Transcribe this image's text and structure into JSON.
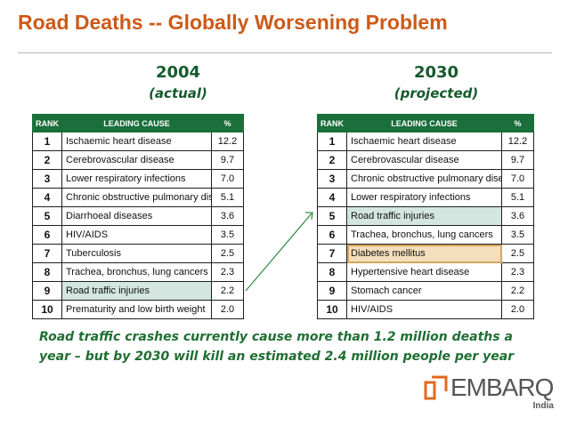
{
  "title": "Road Deaths -- Globally Worsening Problem",
  "left": {
    "year": "2004",
    "subtitle": "(actual)",
    "headers": [
      "RANK",
      "LEADING CAUSE",
      "%"
    ],
    "rows": [
      {
        "rank": "1",
        "cause": "Ischaemic heart disease",
        "pct": "12.2"
      },
      {
        "rank": "2",
        "cause": "Cerebrovascular disease",
        "pct": "9.7"
      },
      {
        "rank": "3",
        "cause": "Lower respiratory infections",
        "pct": "7.0"
      },
      {
        "rank": "4",
        "cause": "Chronic obstructive pulmonary disease",
        "pct": "5.1"
      },
      {
        "rank": "5",
        "cause": "Diarrhoeal diseases",
        "pct": "3.6"
      },
      {
        "rank": "6",
        "cause": "HIV/AIDS",
        "pct": "3.5"
      },
      {
        "rank": "7",
        "cause": "Tuberculosis",
        "pct": "2.5"
      },
      {
        "rank": "8",
        "cause": "Trachea, bronchus, lung cancers",
        "pct": "2.3"
      },
      {
        "rank": "9",
        "cause": "Road traffic injuries",
        "pct": "2.2"
      },
      {
        "rank": "10",
        "cause": "Prematurity and low birth weight",
        "pct": "2.0"
      }
    ]
  },
  "right": {
    "year": "2030",
    "subtitle": "(projected)",
    "headers": [
      "RANK",
      "LEADING CAUSE",
      "%"
    ],
    "rows": [
      {
        "rank": "1",
        "cause": "Ischaemic heart disease",
        "pct": "12.2"
      },
      {
        "rank": "2",
        "cause": "Cerebrovascular disease",
        "pct": "9.7"
      },
      {
        "rank": "3",
        "cause": "Chronic obstructive pulmonary disease",
        "pct": "7.0"
      },
      {
        "rank": "4",
        "cause": "Lower respiratory infections",
        "pct": "5.1"
      },
      {
        "rank": "5",
        "cause": "Road traffic injuries",
        "pct": "3.6"
      },
      {
        "rank": "6",
        "cause": "Trachea, bronchus, lung cancers",
        "pct": "3.5"
      },
      {
        "rank": "7",
        "cause": "Diabetes mellitus",
        "pct": "2.5"
      },
      {
        "rank": "8",
        "cause": "Hypertensive heart disease",
        "pct": "2.3"
      },
      {
        "rank": "9",
        "cause": "Stomach cancer",
        "pct": "2.2"
      },
      {
        "rank": "10",
        "cause": "HIV/AIDS",
        "pct": "2.0"
      }
    ]
  },
  "caption": {
    "line1": "Road traffic crashes currently cause more than 1.2 million deaths a",
    "line2": "year – but by 2030 will kill an estimated 2.4 million people per year"
  },
  "logo": {
    "name": "EMBARQ",
    "region": "India"
  },
  "colors": {
    "title": "#cc5a18",
    "header_green": "#1a6f3b",
    "highlight_green": "#d3e6df",
    "highlight_tan": "#f3dfbd",
    "caption": "#1f6e33"
  }
}
